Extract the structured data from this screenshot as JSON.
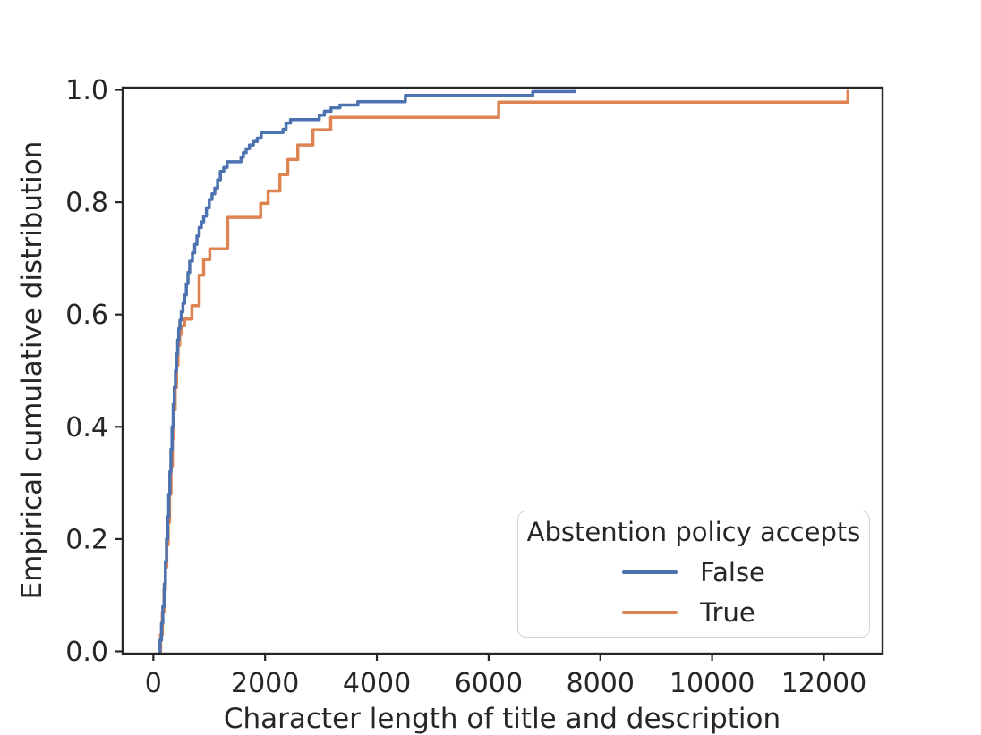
{
  "chart_data": {
    "type": "line",
    "subtype": "ecdf-step",
    "title": "",
    "xlabel": "Character length of title and description",
    "ylabel": "Empirical cumulative distribution",
    "xlim": [
      -550,
      13050
    ],
    "ylim": [
      -0.004,
      1.004
    ],
    "xticks": [
      0,
      2000,
      4000,
      6000,
      8000,
      10000,
      12000
    ],
    "yticks": [
      0,
      0.2,
      0.4,
      0.6,
      0.8,
      1
    ],
    "grid": false,
    "axis_color": "#262626",
    "legend": {
      "title": "Abstention policy accepts",
      "position": "lower right",
      "entries": [
        {
          "label": "False",
          "color": "#4C72B0"
        },
        {
          "label": "True",
          "color": "#DD8452"
        }
      ]
    },
    "series": [
      {
        "name": "False",
        "color": "#4C72B0",
        "drawstyle": "steps-post",
        "x": [
          95,
          120,
          145,
          170,
          195,
          215,
          235,
          255,
          275,
          295,
          315,
          335,
          355,
          375,
          395,
          415,
          435,
          455,
          475,
          500,
          530,
          560,
          590,
          620,
          650,
          700,
          740,
          780,
          820,
          860,
          900,
          950,
          1000,
          1050,
          1100,
          1150,
          1200,
          1260,
          1320,
          1570,
          1610,
          1660,
          1720,
          1790,
          1860,
          1930,
          2320,
          2375,
          2455,
          2970,
          3060,
          3180,
          3340,
          3660,
          4510,
          6790,
          7540
        ],
        "y": [
          0,
          0.02,
          0.05,
          0.08,
          0.12,
          0.16,
          0.2,
          0.24,
          0.28,
          0.32,
          0.36,
          0.4,
          0.44,
          0.47,
          0.5,
          0.53,
          0.555,
          0.575,
          0.59,
          0.605,
          0.62,
          0.635,
          0.655,
          0.675,
          0.695,
          0.71,
          0.725,
          0.74,
          0.755,
          0.765,
          0.775,
          0.79,
          0.805,
          0.815,
          0.825,
          0.84,
          0.855,
          0.862,
          0.872,
          0.88,
          0.888,
          0.895,
          0.902,
          0.908,
          0.914,
          0.924,
          0.93,
          0.941,
          0.947,
          0.955,
          0.962,
          0.968,
          0.973,
          0.979,
          0.99,
          0.997,
          1.0
        ]
      },
      {
        "name": "True",
        "color": "#DD8452",
        "drawstyle": "steps-post",
        "x": [
          95,
          130,
          160,
          190,
          215,
          240,
          265,
          290,
          315,
          340,
          365,
          390,
          415,
          440,
          470,
          510,
          560,
          690,
          820,
          900,
          1010,
          1330,
          1920,
          2055,
          2265,
          2405,
          2585,
          2855,
          3175,
          6180,
          12430
        ],
        "y": [
          0,
          0.03,
          0.07,
          0.11,
          0.15,
          0.19,
          0.23,
          0.28,
          0.33,
          0.38,
          0.43,
          0.47,
          0.51,
          0.545,
          0.565,
          0.58,
          0.592,
          0.616,
          0.67,
          0.698,
          0.717,
          0.773,
          0.798,
          0.82,
          0.849,
          0.876,
          0.902,
          0.929,
          0.951,
          0.978,
          1.0
        ]
      }
    ]
  }
}
